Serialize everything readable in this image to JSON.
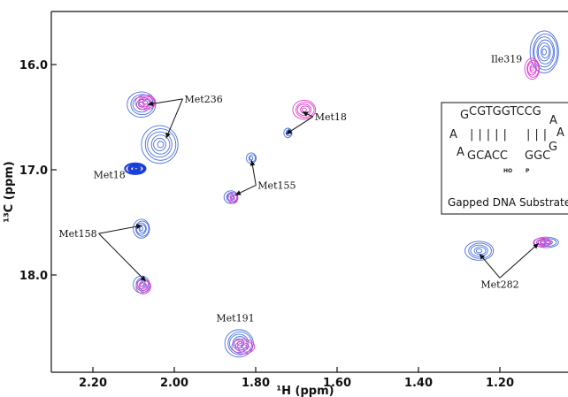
{
  "chart_data": {
    "type": "scatter",
    "title": "",
    "xlabel": "¹H (ppm)",
    "ylabel": "¹³C (ppm)",
    "xlim": [
      2.3,
      1.05
    ],
    "ylim": [
      19.0,
      15.5
    ],
    "x_reversed": true,
    "y_reversed": true,
    "x_ticks": [
      "2.20",
      "2.00",
      "1.80",
      "1.60",
      "1.40",
      "1.20"
    ],
    "x_tick_values": [
      2.2,
      2.0,
      1.8,
      1.6,
      1.4,
      1.2
    ],
    "y_ticks": [
      "16.0",
      "17.0",
      "18.0"
    ],
    "y_tick_values": [
      16.0,
      17.0,
      18.0
    ],
    "colors": {
      "blue": "#4a6ee0",
      "dark_blue": "#1a3fd6",
      "magenta": "#e040d0"
    },
    "peaks": [
      {
        "series": "blue",
        "x": 2.08,
        "y": 16.38,
        "rx": 0.035,
        "ry": 0.12,
        "n": 5
      },
      {
        "series": "magenta",
        "x": 2.07,
        "y": 16.36,
        "rx": 0.025,
        "ry": 0.07,
        "n": 5
      },
      {
        "series": "blue",
        "x": 2.035,
        "y": 16.76,
        "rx": 0.045,
        "ry": 0.18,
        "n": 6
      },
      {
        "series": "dark_blue",
        "x": 2.095,
        "y": 16.99,
        "rx": 0.025,
        "ry": 0.05,
        "n": 4
      },
      {
        "series": "blue",
        "x": 2.08,
        "y": 17.56,
        "rx": 0.02,
        "ry": 0.09,
        "n": 5
      },
      {
        "series": "blue",
        "x": 2.08,
        "y": 18.09,
        "rx": 0.02,
        "ry": 0.08,
        "n": 4
      },
      {
        "series": "magenta",
        "x": 2.075,
        "y": 18.11,
        "rx": 0.018,
        "ry": 0.07,
        "n": 4
      },
      {
        "series": "blue",
        "x": 1.86,
        "y": 17.26,
        "rx": 0.017,
        "ry": 0.06,
        "n": 4
      },
      {
        "series": "magenta",
        "x": 1.855,
        "y": 17.27,
        "rx": 0.012,
        "ry": 0.05,
        "n": 3
      },
      {
        "series": "blue",
        "x": 1.81,
        "y": 16.89,
        "rx": 0.012,
        "ry": 0.05,
        "n": 3
      },
      {
        "series": "blue",
        "x": 1.72,
        "y": 16.65,
        "rx": 0.01,
        "ry": 0.045,
        "n": 3
      },
      {
        "series": "magenta",
        "x": 1.68,
        "y": 16.43,
        "rx": 0.028,
        "ry": 0.09,
        "n": 5
      },
      {
        "series": "blue",
        "x": 1.84,
        "y": 18.65,
        "rx": 0.035,
        "ry": 0.13,
        "n": 6
      },
      {
        "series": "magenta",
        "x": 1.83,
        "y": 18.68,
        "rx": 0.028,
        "ry": 0.07,
        "n": 4
      },
      {
        "series": "blue",
        "x": 1.25,
        "y": 17.77,
        "rx": 0.035,
        "ry": 0.09,
        "n": 5
      },
      {
        "series": "blue",
        "x": 1.085,
        "y": 17.69,
        "rx": 0.03,
        "ry": 0.05,
        "n": 4
      },
      {
        "series": "magenta",
        "x": 1.095,
        "y": 17.69,
        "rx": 0.022,
        "ry": 0.04,
        "n": 4
      },
      {
        "series": "blue",
        "x": 1.09,
        "y": 15.88,
        "rx": 0.035,
        "ry": 0.2,
        "n": 7
      },
      {
        "series": "magenta",
        "x": 1.12,
        "y": 16.04,
        "rx": 0.018,
        "ry": 0.1,
        "n": 5
      }
    ],
    "annotations": [
      {
        "text": "Ile319",
        "x": 1.145,
        "y": 15.98,
        "anchor": "end",
        "arrows": []
      },
      {
        "text": "Met236",
        "x": 1.975,
        "y": 16.36,
        "anchor": "start",
        "arrows": [
          {
            "x": 2.065,
            "y": 16.38
          },
          {
            "x": 2.02,
            "y": 16.7
          }
        ]
      },
      {
        "text": "Met18",
        "x": 1.655,
        "y": 16.53,
        "anchor": "start",
        "arrows": [
          {
            "x": 1.685,
            "y": 16.45
          },
          {
            "x": 1.725,
            "y": 16.66
          }
        ]
      },
      {
        "text": "Met18",
        "x": 2.12,
        "y": 17.08,
        "anchor": "end",
        "arrows": []
      },
      {
        "text": "Met155",
        "x": 1.795,
        "y": 17.18,
        "anchor": "start",
        "arrows": [
          {
            "x": 1.81,
            "y": 16.91
          },
          {
            "x": 1.85,
            "y": 17.24
          }
        ]
      },
      {
        "text": "Met158",
        "x": 2.19,
        "y": 17.64,
        "anchor": "end",
        "arrows": [
          {
            "x": 2.08,
            "y": 17.53
          },
          {
            "x": 2.07,
            "y": 18.06
          }
        ]
      },
      {
        "text": "Met282",
        "x": 1.2,
        "y": 18.12,
        "anchor": "middle",
        "arrows": [
          {
            "x": 1.25,
            "y": 17.8
          },
          {
            "x": 1.105,
            "y": 17.7
          }
        ]
      },
      {
        "text": "Met191",
        "x": 1.85,
        "y": 18.44,
        "anchor": "middle",
        "arrows": []
      }
    ],
    "inset": {
      "caption": "Gapped DNA Substrate",
      "top_strand": "CGTGGTCCG",
      "bottom_left": "GCACC",
      "bottom_right": "GGC",
      "pairs_left": "|||||",
      "pairs_right": "|||",
      "left_top": "G",
      "left_mid": "A",
      "left_bottom": "A",
      "right_top": "A",
      "right_mid": "A",
      "right_bottom": "G",
      "label_ho": "HO",
      "label_p": "P"
    }
  }
}
